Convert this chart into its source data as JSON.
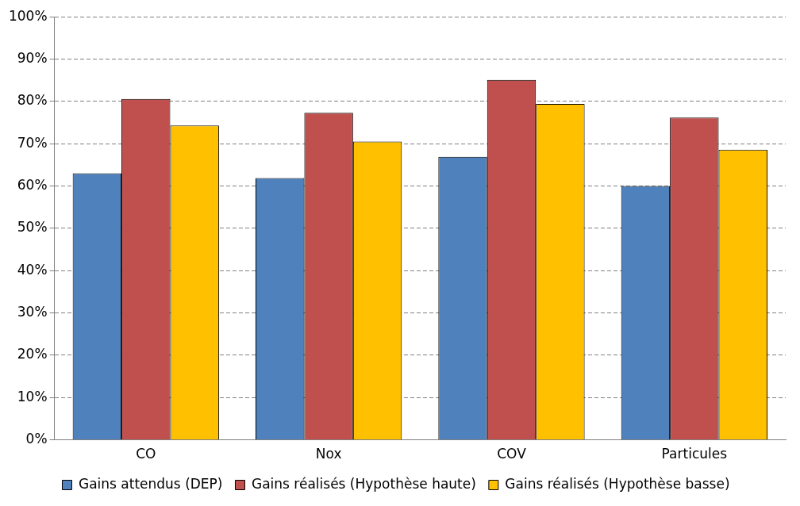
{
  "chart_data": {
    "type": "bar",
    "categories": [
      "CO",
      "Nox",
      "COV",
      "Particules"
    ],
    "series": [
      {
        "name": "Gains attendus (DEP)",
        "color": "#4f81bd",
        "values": [
          63,
          61.9,
          66.9,
          60
        ]
      },
      {
        "name": "Gains réalisés (Hypothèse haute)",
        "color": "#c0504d",
        "values": [
          80.6,
          77.3,
          85.1,
          76.2
        ]
      },
      {
        "name": "Gains réalisés (Hypothèse basse)",
        "color": "#ffc000",
        "values": [
          74.3,
          70.5,
          79.4,
          68.6
        ]
      }
    ],
    "ylim": [
      0,
      100
    ],
    "yticks": [
      {
        "value": 0,
        "label": "0%"
      },
      {
        "value": 10,
        "label": "10%"
      },
      {
        "value": 20,
        "label": "20%"
      },
      {
        "value": 30,
        "label": "30%"
      },
      {
        "value": 40,
        "label": "40%"
      },
      {
        "value": 50,
        "label": "50%"
      },
      {
        "value": 60,
        "label": "60%"
      },
      {
        "value": 70,
        "label": "70%"
      },
      {
        "value": 80,
        "label": "80%"
      },
      {
        "value": 90,
        "label": "90%"
      },
      {
        "value": 100,
        "label": "100%"
      }
    ],
    "grid": "y",
    "legend": "bottom"
  }
}
